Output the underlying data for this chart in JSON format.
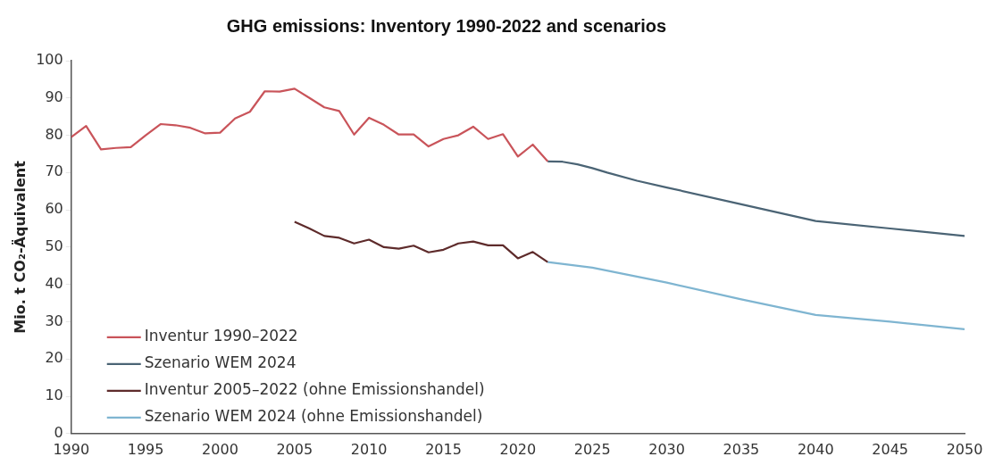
{
  "chart_data": {
    "type": "line",
    "title": "GHG emissions: Inventory 1990-2022 and scenarios",
    "ylabel": "Mio. t CO₂-Äquivalent",
    "xlim": [
      1990,
      2050
    ],
    "xticks": [
      1990,
      1995,
      2000,
      2005,
      2010,
      2015,
      2020,
      2025,
      2030,
      2035,
      2040,
      2045,
      2050
    ],
    "ylim": [
      0,
      100
    ],
    "yticks": [
      0,
      10,
      20,
      30,
      40,
      50,
      60,
      70,
      80,
      90,
      100
    ],
    "grid": false,
    "legend": "bottom left",
    "series": [
      {
        "name": "Inventur 1990–2022",
        "color": "#c9545a",
        "x": [
          1990,
          1991,
          1992,
          1993,
          1994,
          1995,
          1996,
          1997,
          1998,
          1999,
          2000,
          2001,
          2002,
          2003,
          2004,
          2005,
          2006,
          2007,
          2008,
          2009,
          2010,
          2011,
          2012,
          2013,
          2014,
          2015,
          2016,
          2017,
          2018,
          2019,
          2020,
          2021,
          2022
        ],
        "values": [
          79.5,
          82.5,
          76.2,
          76.6,
          76.8,
          80,
          83,
          82.7,
          82,
          80.5,
          80.7,
          84.5,
          86.3,
          91.8,
          91.7,
          92.5,
          90,
          87.5,
          86.5,
          80.2,
          84.7,
          82.8,
          80.2,
          80.2,
          77,
          79,
          80,
          82.3,
          79,
          80.3,
          74.3,
          77.5,
          73
        ]
      },
      {
        "name": "Szenario WEM 2024",
        "color": "#4b6475",
        "x": [
          2022,
          2023,
          2024,
          2025,
          2026,
          2028,
          2030,
          2035,
          2040,
          2045,
          2050
        ],
        "values": [
          73,
          72.9,
          72.2,
          71.2,
          70,
          67.8,
          66,
          61.5,
          57,
          55,
          53
        ]
      },
      {
        "name": "Inventur 2005–2022 (ohne Emissionshandel)",
        "color": "#5e2b2b",
        "x": [
          2005,
          2006,
          2007,
          2008,
          2009,
          2010,
          2011,
          2012,
          2013,
          2014,
          2015,
          2016,
          2017,
          2018,
          2019,
          2020,
          2021,
          2022
        ],
        "values": [
          56.8,
          55,
          53,
          52.5,
          51,
          52,
          50,
          49.6,
          50.4,
          48.6,
          49.3,
          51,
          51.5,
          50.5,
          50.5,
          47,
          48.7,
          46
        ]
      },
      {
        "name": "Szenario WEM 2024 (ohne Emissionshandel)",
        "color": "#7fb5d1",
        "x": [
          2022,
          2025,
          2030,
          2035,
          2040,
          2045,
          2050
        ],
        "values": [
          46,
          44.5,
          40.5,
          36,
          31.8,
          30,
          28
        ]
      }
    ]
  }
}
